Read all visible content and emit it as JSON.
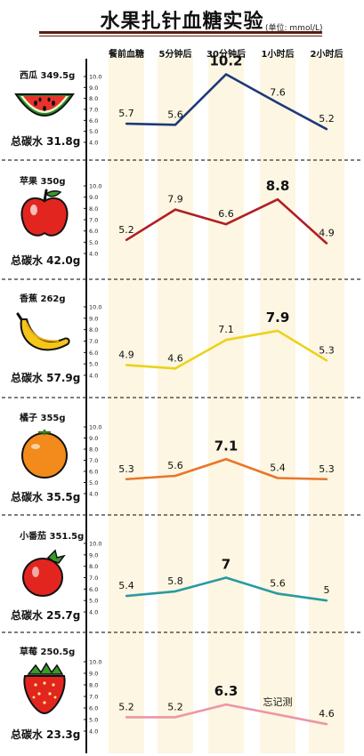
{
  "header": {
    "title": "水果扎针血糖实验",
    "unit": "(单位: mmol/L)"
  },
  "columns": [
    "餐前血糖",
    "5分钟后",
    "30分钟后",
    "1小时后",
    "2小时后"
  ],
  "y_ticks": [
    "10.0",
    "9.0",
    "8.0",
    "7.0",
    "6.0",
    "5.0",
    "4.0"
  ],
  "colors": {
    "watermelon": "#1f3a7a",
    "apple": "#b01f24",
    "banana": "#ecd21a",
    "orange": "#e8762a",
    "tomato": "#2a9aa0",
    "strawberry": "#ec95a6",
    "column_band": "#fdf6e2"
  },
  "fruits": [
    {
      "name": "西瓜 349.5g",
      "carb": "总碳水 31.8g",
      "icon": "watermelon-icon"
    },
    {
      "name": "苹果 350g",
      "carb": "总碳水 42.0g",
      "icon": "apple-icon"
    },
    {
      "name": "香蕉 262g",
      "carb": "总碳水 57.9g",
      "icon": "banana-icon"
    },
    {
      "name": "橘子 355g",
      "carb": "总碳水 35.5g",
      "icon": "orange-icon"
    },
    {
      "name": "小番茄 351.5g",
      "carb": "总碳水 25.7g",
      "icon": "tomato-icon"
    },
    {
      "name": "草莓 250.5g",
      "carb": "总碳水 23.3g",
      "icon": "strawberry-icon"
    }
  ],
  "chart_data": {
    "type": "line",
    "title": "水果扎针血糖实验",
    "categories": [
      "餐前血糖",
      "5分钟后",
      "30分钟后",
      "1小时后",
      "2小时后"
    ],
    "ylim": [
      4.0,
      10.0
    ],
    "grid": false,
    "series": [
      {
        "name": "西瓜 349.5g",
        "values": [
          5.7,
          5.6,
          10.2,
          7.6,
          5.2
        ],
        "labels": [
          "5.7",
          "5.6",
          "10.2",
          "7.6",
          "5.2"
        ],
        "peak_index": 2
      },
      {
        "name": "苹果 350g",
        "values": [
          5.2,
          7.9,
          6.6,
          8.8,
          4.9
        ],
        "labels": [
          "5.2",
          "7.9",
          "6.6",
          "8.8",
          "4.9"
        ],
        "peak_index": 3
      },
      {
        "name": "香蕉 262g",
        "values": [
          4.9,
          4.6,
          7.1,
          7.9,
          5.3
        ],
        "labels": [
          "4.9",
          "4.6",
          "7.1",
          "7.9",
          "5.3"
        ],
        "peak_index": 3
      },
      {
        "name": "橘子 355g",
        "values": [
          5.3,
          5.6,
          7.1,
          5.4,
          5.3
        ],
        "labels": [
          "5.3",
          "5.6",
          "7.1",
          "5.4",
          "5.3"
        ],
        "peak_index": 2
      },
      {
        "name": "小番茄 351.5g",
        "values": [
          5.4,
          5.8,
          7.0,
          5.6,
          5.0
        ],
        "labels": [
          "5.4",
          "5.8",
          "7",
          "5.6",
          "5"
        ],
        "peak_index": 2
      },
      {
        "name": "草莓 250.5g",
        "values": [
          5.2,
          5.2,
          6.3,
          null,
          4.6
        ],
        "labels": [
          "5.2",
          "5.2",
          "6.3",
          "忘记测",
          "4.6"
        ],
        "peak_index": 2
      }
    ]
  }
}
